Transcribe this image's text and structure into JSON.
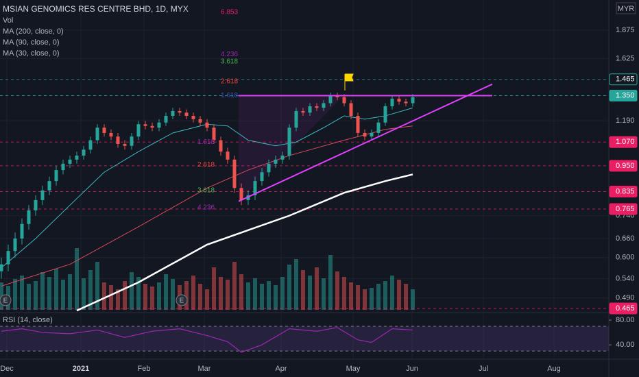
{
  "chart_data": {
    "type": "candlestick",
    "title": "MSIAN GENOMICS RES CENTRE BHD, 1D, MYX",
    "currency": "MYR",
    "log_scale": true,
    "ylim": [
      0.457,
      2.18
    ],
    "xlim": [
      -0.2,
      88.6
    ],
    "xticks": [
      {
        "value": 0.8,
        "label": "Dec"
      },
      {
        "value": 11.6,
        "label": "2021"
      },
      {
        "value": 20.8,
        "label": "Feb"
      },
      {
        "value": 29.6,
        "label": "Mar"
      },
      {
        "value": 40.8,
        "label": "Apr"
      },
      {
        "value": 51.3,
        "label": "May"
      },
      {
        "value": 59.9,
        "label": "Jun"
      },
      {
        "value": 70.3,
        "label": "Jul"
      },
      {
        "value": 80.6,
        "label": "Aug"
      }
    ],
    "yticks": [
      {
        "value": 1.875,
        "label": "1.875"
      },
      {
        "value": 1.625,
        "label": "1.625"
      },
      {
        "value": 1.19,
        "label": "1.190"
      },
      {
        "value": 0.74,
        "label": "0.740"
      },
      {
        "value": 0.66,
        "label": "0.660"
      },
      {
        "value": 0.6,
        "label": "0.600"
      },
      {
        "value": 0.54,
        "label": "0.540"
      },
      {
        "value": 0.49,
        "label": "0.490"
      }
    ],
    "price_levels": [
      {
        "value": 1.465,
        "label": "1.465",
        "color": "#26a69a",
        "style": "outline"
      },
      {
        "value": 1.35,
        "label": "1.350",
        "color": "#26a69a",
        "style": "solid"
      },
      {
        "value": 1.07,
        "label": "1.070",
        "color": "#e91e63",
        "style": "solid"
      },
      {
        "value": 0.95,
        "label": "0.950",
        "color": "#e91e63",
        "style": "solid"
      },
      {
        "value": 0.835,
        "label": "0.835",
        "color": "#e91e63",
        "style": "solid"
      },
      {
        "value": 0.765,
        "label": "0.765",
        "color": "#e91e63",
        "style": "solid"
      },
      {
        "value": 0.465,
        "label": "0.465",
        "color": "#e91e63",
        "style": "solid"
      }
    ],
    "up_color": "#26a69a",
    "down_color": "#ef5350",
    "open": [
      0.56,
      0.58,
      0.62,
      0.66,
      0.71,
      0.76,
      0.8,
      0.84,
      0.88,
      0.93,
      0.96,
      0.98,
      1.0,
      1.03,
      1.08,
      1.15,
      1.12,
      1.1,
      1.06,
      1.05,
      1.1,
      1.17,
      1.16,
      1.15,
      1.18,
      1.22,
      1.25,
      1.24,
      1.22,
      1.2,
      1.18,
      1.15,
      1.08,
      1.02,
      0.98,
      0.85,
      0.8,
      0.82,
      0.88,
      0.92,
      0.96,
      0.98,
      1.0,
      1.15,
      1.25,
      1.24,
      1.28,
      1.27,
      1.3,
      1.35,
      1.34,
      1.3,
      1.22,
      1.12,
      1.1,
      1.12,
      1.18,
      1.28,
      1.33,
      1.31,
      1.3
    ],
    "high": [
      0.6,
      0.64,
      0.68,
      0.73,
      0.78,
      0.82,
      0.86,
      0.9,
      0.95,
      0.98,
      1.0,
      1.02,
      1.05,
      1.1,
      1.17,
      1.17,
      1.14,
      1.12,
      1.08,
      1.12,
      1.19,
      1.19,
      1.18,
      1.2,
      1.24,
      1.27,
      1.27,
      1.26,
      1.24,
      1.22,
      1.2,
      1.17,
      1.1,
      1.04,
      1.0,
      0.87,
      0.84,
      0.9,
      0.94,
      0.98,
      1.0,
      1.02,
      1.17,
      1.27,
      1.27,
      1.3,
      1.3,
      1.32,
      1.37,
      1.37,
      1.36,
      1.32,
      1.24,
      1.14,
      1.14,
      1.2,
      1.3,
      1.35,
      1.35,
      1.33,
      1.36
    ],
    "low": [
      0.54,
      0.56,
      0.6,
      0.64,
      0.69,
      0.74,
      0.78,
      0.82,
      0.86,
      0.91,
      0.94,
      0.96,
      0.98,
      1.01,
      1.06,
      1.1,
      1.08,
      1.04,
      1.03,
      1.03,
      1.08,
      1.14,
      1.13,
      1.13,
      1.16,
      1.2,
      1.22,
      1.2,
      1.18,
      1.16,
      1.13,
      1.06,
      1.0,
      0.96,
      0.83,
      0.78,
      0.78,
      0.8,
      0.86,
      0.9,
      0.94,
      0.96,
      0.98,
      1.13,
      1.22,
      1.22,
      1.25,
      1.25,
      1.28,
      1.32,
      1.28,
      1.2,
      1.1,
      1.08,
      1.08,
      1.1,
      1.16,
      1.26,
      1.29,
      1.28,
      1.28
    ],
    "close": [
      0.58,
      0.62,
      0.66,
      0.71,
      0.76,
      0.8,
      0.84,
      0.88,
      0.93,
      0.96,
      0.98,
      1.0,
      1.03,
      1.08,
      1.15,
      1.12,
      1.1,
      1.06,
      1.05,
      1.1,
      1.17,
      1.16,
      1.15,
      1.18,
      1.22,
      1.25,
      1.24,
      1.22,
      1.2,
      1.18,
      1.15,
      1.08,
      1.02,
      0.98,
      0.85,
      0.8,
      0.82,
      0.88,
      0.92,
      0.96,
      0.98,
      1.0,
      1.15,
      1.25,
      1.24,
      1.28,
      1.27,
      1.3,
      1.35,
      1.34,
      1.3,
      1.22,
      1.12,
      1.1,
      1.12,
      1.18,
      1.28,
      1.33,
      1.31,
      1.3,
      1.34
    ],
    "volume_name": "Vol",
    "volume_lim": [
      0,
      100
    ],
    "volume": [
      40,
      35,
      45,
      50,
      38,
      42,
      55,
      48,
      60,
      44,
      52,
      90,
      46,
      58,
      70,
      40,
      36,
      30,
      42,
      55,
      48,
      38,
      34,
      40,
      52,
      45,
      36,
      42,
      50,
      38,
      30,
      62,
      48,
      44,
      70,
      52,
      40,
      46,
      38,
      42,
      36,
      48,
      66,
      74,
      58,
      50,
      62,
      46,
      80,
      56,
      48,
      40,
      36,
      30,
      32,
      38,
      42,
      50,
      44,
      38,
      30
    ],
    "ma": [
      {
        "name": "MA (200, close, 0)",
        "color": "#ffffff",
        "width": 2.5,
        "x": [
          11,
          20,
          30,
          35,
          42,
          50,
          56,
          60
        ],
        "values": [
          0.46,
          0.53,
          0.64,
          0.68,
          0.74,
          0.83,
          0.88,
          0.91
        ]
      },
      {
        "name": "MA (90, close, 0)",
        "color": "#d84a5c",
        "width": 1,
        "x": [
          0,
          10,
          20,
          30,
          36,
          42,
          50,
          56,
          60
        ],
        "values": [
          0.52,
          0.58,
          0.7,
          0.85,
          0.93,
          1.0,
          1.08,
          1.14,
          1.16
        ]
      },
      {
        "name": "MA (30, close, 0)",
        "color": "#3fb8c0",
        "width": 1,
        "x": [
          0,
          5,
          10,
          15,
          20,
          25,
          30,
          33,
          36,
          40,
          43,
          47,
          50,
          53,
          56,
          60
        ],
        "values": [
          0.57,
          0.66,
          0.78,
          0.92,
          1.02,
          1.12,
          1.17,
          1.16,
          1.08,
          1.05,
          1.07,
          1.15,
          1.22,
          1.2,
          1.22,
          1.27
        ]
      }
    ],
    "trend_lines": [
      {
        "color": "#e040fb",
        "x": [
          34.6,
          71.6
        ],
        "values": [
          1.35,
          1.35
        ]
      },
      {
        "color": "#e040fb",
        "x": [
          34.6,
          71.6
        ],
        "values": [
          0.795,
          1.43
        ]
      }
    ],
    "fib_labels": [
      {
        "label": "6.853",
        "value": 2.05,
        "x": 32,
        "color": "#e91e63"
      },
      {
        "label": "4.236",
        "value": 1.66,
        "x": 32,
        "color": "#9c27b0"
      },
      {
        "label": "3.618",
        "value": 1.6,
        "x": 32,
        "color": "#4caf50"
      },
      {
        "label": "2.618",
        "value": 1.45,
        "x": 32,
        "color": "#f44336"
      },
      {
        "label": "1.618",
        "value": 1.35,
        "x": 32,
        "color": "#3f51b5"
      },
      {
        "label": "1.618",
        "value": 1.07,
        "x": 28.6,
        "color": "#9c27b0"
      },
      {
        "label": "2.618",
        "value": 0.955,
        "x": 28.6,
        "color": "#f44336"
      },
      {
        "label": "3.618",
        "value": 0.84,
        "x": 28.6,
        "color": "#4caf50"
      },
      {
        "label": "4.236",
        "value": 0.77,
        "x": 28.6,
        "color": "#9c27b0"
      }
    ],
    "rsi": {
      "name": "RSI (14, close)",
      "color": "#9c27b0",
      "ylim": [
        19,
        90
      ],
      "yticks": [
        {
          "value": 80,
          "label": "80.00"
        },
        {
          "value": 40,
          "label": "40.00"
        }
      ],
      "band": [
        30,
        70
      ],
      "x": [
        0,
        3,
        6,
        10,
        14,
        18,
        22,
        26,
        30,
        33,
        35,
        38,
        42,
        46,
        49,
        52,
        54,
        57,
        60
      ],
      "values": [
        62,
        66,
        60,
        58,
        64,
        52,
        62,
        66,
        55,
        45,
        28,
        40,
        66,
        62,
        68,
        48,
        44,
        66,
        64
      ]
    }
  }
}
